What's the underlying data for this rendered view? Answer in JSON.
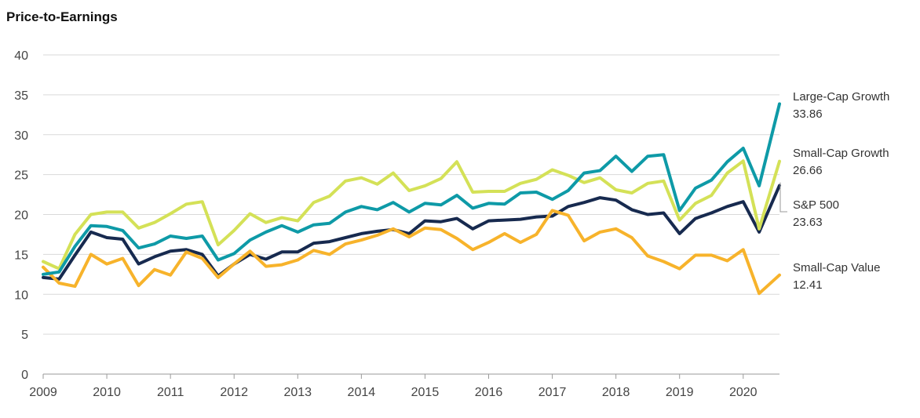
{
  "chart_data": {
    "type": "line",
    "title": "Price-to-Earnings",
    "xlabel": "",
    "ylabel": "",
    "ylim": [
      0,
      40
    ],
    "yticks": [
      0,
      5,
      10,
      15,
      20,
      25,
      30,
      35,
      40
    ],
    "xlim": [
      2009,
      2020.57
    ],
    "xticks": [
      2009,
      2010,
      2011,
      2012,
      2013,
      2014,
      2015,
      2016,
      2017,
      2018,
      2019,
      2020
    ],
    "grid": true,
    "legend": "right-end labels",
    "x": [
      2009.0,
      2009.25,
      2009.5,
      2009.75,
      2010.0,
      2010.25,
      2010.5,
      2010.75,
      2011.0,
      2011.25,
      2011.5,
      2011.75,
      2012.0,
      2012.25,
      2012.5,
      2012.75,
      2013.0,
      2013.25,
      2013.5,
      2013.75,
      2014.0,
      2014.25,
      2014.5,
      2014.75,
      2015.0,
      2015.25,
      2015.5,
      2015.75,
      2016.0,
      2016.25,
      2016.5,
      2016.75,
      2017.0,
      2017.25,
      2017.5,
      2017.75,
      2018.0,
      2018.25,
      2018.5,
      2018.75,
      2019.0,
      2019.25,
      2019.5,
      2019.75,
      2020.0,
      2020.25,
      2020.57
    ],
    "series": [
      {
        "name": "Large-Cap Growth",
        "end_value": "33.86",
        "color": "#0e9aa7",
        "values": [
          12.5,
          12.8,
          16.0,
          18.6,
          18.5,
          18.0,
          15.8,
          16.3,
          17.3,
          17.0,
          17.3,
          14.3,
          15.1,
          16.8,
          17.8,
          18.6,
          17.8,
          18.7,
          18.9,
          20.3,
          21.0,
          20.6,
          21.5,
          20.3,
          21.4,
          21.2,
          22.4,
          20.8,
          21.4,
          21.3,
          22.7,
          22.8,
          21.9,
          23.0,
          25.2,
          25.5,
          27.3,
          25.4,
          27.3,
          27.5,
          20.5,
          23.3,
          24.3,
          26.6,
          28.3,
          23.6,
          33.86
        ]
      },
      {
        "name": "Small-Cap Growth",
        "end_value": "26.66",
        "color": "#d4e157",
        "values": [
          14.1,
          13.2,
          17.5,
          20.0,
          20.3,
          20.3,
          18.3,
          19.0,
          20.1,
          21.3,
          21.6,
          16.2,
          18.0,
          20.1,
          19.0,
          19.6,
          19.2,
          21.5,
          22.3,
          24.2,
          24.6,
          23.8,
          25.2,
          23.0,
          23.6,
          24.5,
          26.6,
          22.8,
          22.9,
          22.9,
          23.9,
          24.4,
          25.6,
          24.9,
          24.0,
          24.6,
          23.1,
          22.7,
          23.9,
          24.2,
          19.3,
          21.4,
          22.4,
          25.2,
          26.7,
          18.2,
          26.66
        ]
      },
      {
        "name": "S&P 500",
        "end_value": "23.63",
        "color": "#172a4f",
        "values": [
          12.1,
          11.9,
          14.9,
          17.8,
          17.1,
          16.9,
          13.8,
          14.7,
          15.4,
          15.6,
          15.0,
          12.3,
          13.8,
          15.0,
          14.4,
          15.3,
          15.3,
          16.4,
          16.6,
          17.1,
          17.6,
          17.9,
          18.1,
          17.6,
          19.2,
          19.1,
          19.5,
          18.2,
          19.2,
          19.3,
          19.4,
          19.7,
          19.8,
          21.0,
          21.5,
          22.1,
          21.8,
          20.6,
          20.0,
          20.2,
          17.6,
          19.5,
          20.2,
          21.0,
          21.6,
          17.8,
          23.63
        ]
      },
      {
        "name": "Small-Cap Value",
        "end_value": "12.41",
        "color": "#f7b32b",
        "values": [
          13.4,
          11.4,
          11.0,
          15.0,
          13.8,
          14.5,
          11.1,
          13.1,
          12.4,
          15.3,
          14.5,
          12.1,
          13.8,
          15.4,
          13.5,
          13.7,
          14.3,
          15.5,
          15.0,
          16.3,
          16.8,
          17.4,
          18.2,
          17.2,
          18.3,
          18.1,
          17.0,
          15.6,
          16.5,
          17.6,
          16.5,
          17.5,
          20.5,
          19.9,
          16.7,
          17.8,
          18.2,
          17.1,
          14.8,
          14.1,
          13.2,
          14.9,
          14.9,
          14.2,
          15.6,
          10.1,
          12.41
        ]
      }
    ]
  }
}
